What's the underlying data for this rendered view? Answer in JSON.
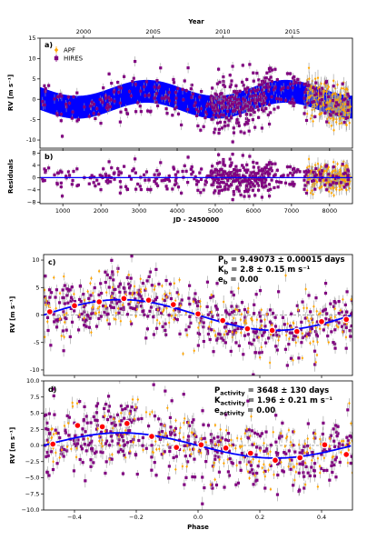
{
  "colors": {
    "apf": "#FFA500",
    "hires": "#800080",
    "model": "#0000FF",
    "errorbar": "#9a9a9a",
    "binned": "#FF0000"
  },
  "top": {
    "xlabel": "JD - 2450000",
    "x2label": "Year",
    "xlim": [
      400,
      8600
    ],
    "xticks": [
      1000,
      2000,
      3000,
      4000,
      5000,
      6000,
      7000,
      8000
    ],
    "year_ticks": [
      {
        "label": "2000",
        "jd": 1545
      },
      {
        "label": "2005",
        "jd": 3371
      },
      {
        "label": "2010",
        "jd": 5198
      },
      {
        "label": "2015",
        "jd": 7024
      }
    ]
  },
  "panels": {
    "a": {
      "label": "a)",
      "ylabel": "RV [m s⁻¹]",
      "ylim": [
        -12,
        15
      ],
      "yticks": [
        -10,
        -5,
        0,
        5,
        10,
        15
      ],
      "legend": [
        {
          "key": "apf",
          "label": "APF"
        },
        {
          "key": "hires",
          "label": "HIRES"
        }
      ]
    },
    "b": {
      "label": "b)",
      "ylabel": "Residuals",
      "ylim": [
        -8.5,
        9
      ],
      "yticks": [
        -8,
        -4,
        0,
        4,
        8
      ],
      "yticklabels": [
        "−8",
        "−4",
        "0",
        "4",
        "8"
      ]
    },
    "c": {
      "label": "c)",
      "ylabel": "RV [m s⁻¹]",
      "ylim": [
        -11,
        11
      ],
      "yticks": [
        -10,
        -5,
        0,
        5,
        10
      ],
      "ann_lines": [
        {
          "main": "P",
          "sub": "b",
          "rest": " = 9.49073 ± 0.00015 days"
        },
        {
          "main": "K",
          "sub": "b",
          "rest": " = 2.8 ± 0.15 m s⁻¹"
        },
        {
          "main": "e",
          "sub": "b",
          "rest": " = 0.00"
        }
      ]
    },
    "d": {
      "label": "d)",
      "ylabel": "RV [m s⁻¹]",
      "ylim": [
        -10,
        10
      ],
      "yticks": [
        -10.0,
        -7.5,
        -5.0,
        -2.5,
        0.0,
        2.5,
        5.0,
        7.5,
        10.0
      ],
      "yticklabels": [
        "−10.0",
        "−7.5",
        "−5.0",
        "−2.5",
        "0.0",
        "2.5",
        "5.0",
        "7.5",
        "10.0"
      ],
      "xlabel": "Phase",
      "xlim": [
        -0.5,
        0.5
      ],
      "xticks": [
        -0.4,
        -0.2,
        0.0,
        0.2,
        0.4
      ],
      "xticklabels": [
        "−0.4",
        "−0.2",
        "0.0",
        "0.2",
        "0.4"
      ],
      "ann_lines": [
        {
          "main": "P",
          "sub": "activity",
          "rest": " = 3648 ± 130 days"
        },
        {
          "main": "K",
          "sub": "activity",
          "rest": " = 1.96 ± 0.21 m s⁻¹"
        },
        {
          "main": "e",
          "sub": "activity",
          "rest": " = 0.00"
        }
      ]
    }
  },
  "chart_data": [
    {
      "type": "scatter",
      "panel": "a",
      "x_range": [
        400,
        8600
      ],
      "ylim": [
        -12,
        15
      ],
      "series": [
        {
          "name": "HIRES",
          "x_range": [
            450,
            8500
          ],
          "y_spread": 3.5
        },
        {
          "name": "APF",
          "x_range": [
            7400,
            8550
          ],
          "y_spread": 3.5
        }
      ],
      "model": {
        "period_days": 3648,
        "semi_amplitude": 1.96,
        "band_halfwidth": 2.8,
        "peak_jd": 3200
      }
    },
    {
      "type": "scatter",
      "panel": "b",
      "x_range": [
        400,
        8600
      ],
      "ylim": [
        -8.5,
        9
      ],
      "series": [
        {
          "name": "HIRES",
          "y_spread": 2.2
        },
        {
          "name": "APF",
          "y_spread": 2.2
        }
      ]
    },
    {
      "type": "scatter",
      "panel": "c",
      "x_range": [
        -0.5,
        0.5
      ],
      "ylim": [
        -11,
        11
      ],
      "model": {
        "type": "sinusoid",
        "amplitude": 2.8,
        "peak_phase": -0.25
      },
      "binned": {
        "x": [
          -0.48,
          -0.4,
          -0.32,
          -0.24,
          -0.16,
          -0.08,
          0.0,
          0.08,
          0.16,
          0.24,
          0.32,
          0.4,
          0.48
        ],
        "y": [
          0.6,
          1.7,
          2.4,
          3.0,
          2.7,
          1.9,
          0.2,
          -1.0,
          -2.5,
          -2.8,
          -3.0,
          -1.2,
          -0.8
        ]
      }
    },
    {
      "type": "scatter",
      "panel": "d",
      "x_range": [
        -0.5,
        0.5
      ],
      "ylim": [
        -10,
        10
      ],
      "model": {
        "type": "sinusoid",
        "amplitude": 1.96,
        "peak_phase": -0.25
      },
      "binned": {
        "x": [
          -0.47,
          -0.39,
          -0.31,
          -0.23,
          -0.15,
          -0.07,
          0.01,
          0.09,
          0.17,
          0.25,
          0.33,
          0.41,
          0.48
        ],
        "y": [
          0.2,
          3.1,
          2.9,
          3.4,
          1.4,
          -0.3,
          0.1,
          -0.4,
          -1.2,
          -2.3,
          -1.9,
          0.1,
          -1.4
        ]
      }
    }
  ]
}
